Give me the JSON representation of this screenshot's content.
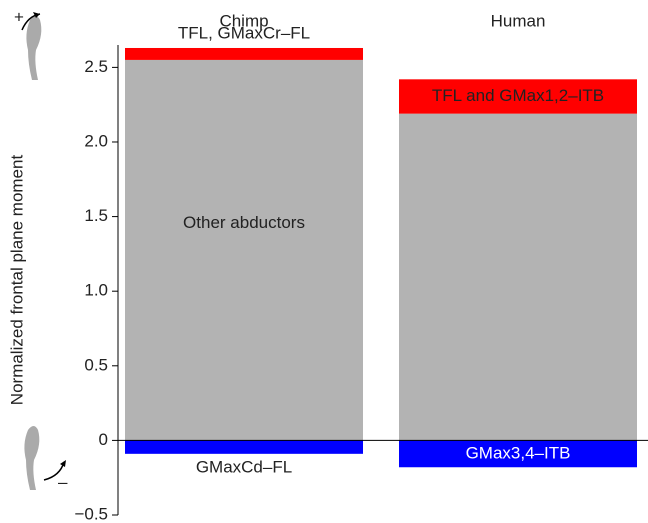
{
  "chart_data": {
    "type": "stacked-bar",
    "y_label": "Normalized frontal plane moment",
    "categories": [
      "Chimp",
      "Human"
    ],
    "series": [
      {
        "color": "#b3b3b3",
        "values": [
          2.55,
          2.19
        ],
        "labels": [
          "Other abductors",
          null
        ]
      },
      {
        "color": "#ff0000",
        "values": [
          0.08,
          0.23
        ],
        "labels": [
          "TFL, GMaxCr–FL",
          "TFL and GMax1,2–ITB"
        ]
      },
      {
        "color": "#0000ff",
        "values": [
          -0.09,
          -0.18
        ],
        "labels": [
          "GMaxCd–FL",
          "GMax3,4–ITB"
        ]
      }
    ],
    "annotations": [
      "+",
      "–"
    ],
    "ylim": [
      -0.5,
      2.65
    ],
    "yticks": [
      {
        "value": -0.5,
        "label": "−0.5"
      },
      0,
      0.5,
      {
        "value": 1,
        "label": "1.0"
      },
      1.5,
      {
        "value": 2,
        "label": "2.0"
      },
      2.5
    ]
  }
}
